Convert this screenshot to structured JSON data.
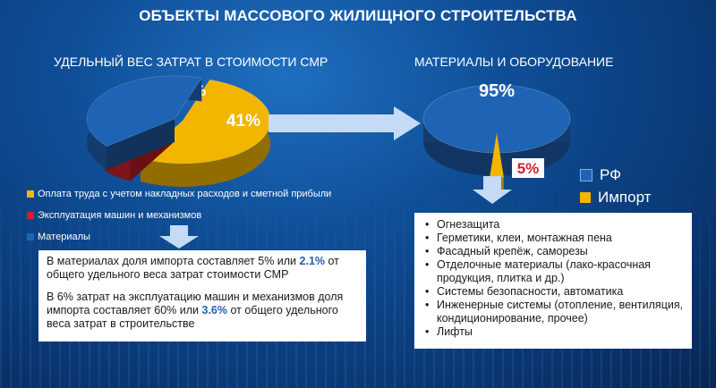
{
  "title": "ОБЪЕКТЫ МАССОВОГО ЖИЛИЩНОГО СТРОИТЕЛЬСТВА",
  "colors": {
    "yellow": "#f2b600",
    "red": "#d4202a",
    "blue": "#1f63b5",
    "arrow": "#c5dbf5"
  },
  "chart_data": [
    {
      "type": "pie",
      "title": "УДЕЛЬНЫЙ ВЕС ЗАТРАТ В СТОИМОСТИ СМР",
      "slices": [
        {
          "label": "Оплата труда с учетом накладных расходов и сметной прибыли",
          "value": 53,
          "display": "53%",
          "color": "#f2b600"
        },
        {
          "label": "Эксплуатация машин и механизмов",
          "value": 6,
          "display": "6%",
          "color": "#d4202a"
        },
        {
          "label": "Материалы",
          "value": 41,
          "display": "41%",
          "color": "#1f63b5"
        }
      ],
      "legend_position": "bottom"
    },
    {
      "type": "pie",
      "title": "МАТЕРИАЛЫ И ОБОРУДОВАНИЕ",
      "slices": [
        {
          "label": "РФ",
          "value": 95,
          "display": "95%",
          "color": "#1f63b5"
        },
        {
          "label": "Импорт",
          "value": 5,
          "display": "5%",
          "color": "#f2b600"
        }
      ],
      "legend_position": "right"
    }
  ],
  "note": {
    "p1_text": "В материалах доля импорта составляет 5% или ",
    "p1_bold": "2.1%",
    "p1_rest": " от общего удельного веса затрат стоимости СМР",
    "p2_text": "В 6% затрат на эксплуатацию машин и механизмов доля импорта составляет 60% или ",
    "p2_bold": "3.6%",
    "p2_rest": " от общего удельного веса затрат в строительстве"
  },
  "import_list": [
    "Огнезащита",
    "Герметики, клеи, монтажная пена",
    "Фасадный крепёж, саморезы",
    "Отделочные материалы (лако-красочная продукция, плитка и др.)",
    "Системы безопасности, автоматика",
    "Инженерные системы (отопление, вентиляция,  кондиционирование, прочее)",
    "Лифты"
  ]
}
